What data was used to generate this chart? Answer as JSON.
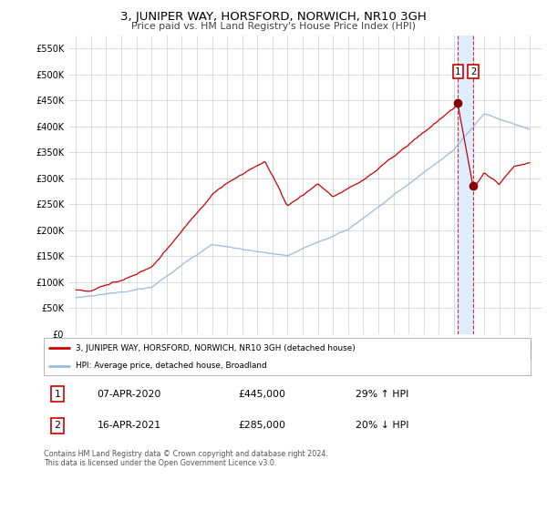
{
  "title": "3, JUNIPER WAY, HORSFORD, NORWICH, NR10 3GH",
  "subtitle": "Price paid vs. HM Land Registry's House Price Index (HPI)",
  "red_label": "3, JUNIPER WAY, HORSFORD, NORWICH, NR10 3GH (detached house)",
  "blue_label": "HPI: Average price, detached house, Broadland",
  "annotation1": {
    "label": "1",
    "date": "07-APR-2020",
    "price": "£445,000",
    "pct": "29% ↑ HPI"
  },
  "annotation2": {
    "label": "2",
    "date": "16-APR-2021",
    "price": "£285,000",
    "pct": "20% ↓ HPI"
  },
  "footer": "Contains HM Land Registry data © Crown copyright and database right 2024.\nThis data is licensed under the Open Government Licence v3.0.",
  "ylim": [
    0,
    575000
  ],
  "yticks": [
    0,
    50000,
    100000,
    150000,
    200000,
    250000,
    300000,
    350000,
    400000,
    450000,
    500000,
    550000
  ],
  "ytick_labels": [
    "£0",
    "£50K",
    "£100K",
    "£150K",
    "£200K",
    "£250K",
    "£300K",
    "£350K",
    "£400K",
    "£450K",
    "£500K",
    "£550K"
  ],
  "red_color": "#cc0000",
  "blue_color": "#99bbdd",
  "shade_color": "#ddeeff",
  "point1_color": "#880000",
  "point2_color": "#880000",
  "bg_color": "#ffffff",
  "grid_color": "#cccccc",
  "point1_x": 2020.27,
  "point1_y": 445000,
  "point2_x": 2021.29,
  "point2_y": 285000,
  "xlim_left": 1994.5,
  "xlim_right": 2025.8
}
